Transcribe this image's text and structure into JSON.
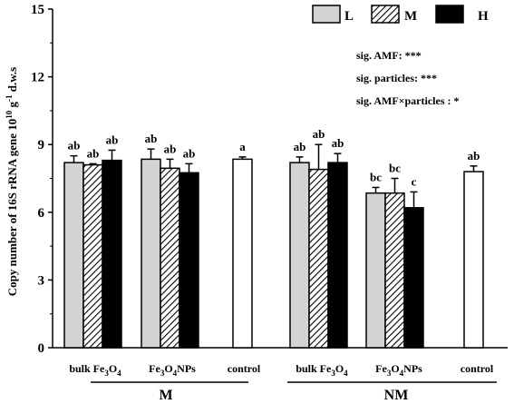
{
  "chart_data": {
    "type": "bar",
    "ylabel_parts": [
      "Copy number of 16S rRNA gene 10",
      "10",
      " g",
      "-1",
      " d.w.s"
    ],
    "ylim": [
      0,
      15
    ],
    "yticks": [
      0,
      3,
      6,
      9,
      12,
      15
    ],
    "legend": {
      "placement": "top-right",
      "entries": [
        {
          "label": "L",
          "pattern": "solid",
          "color": "#d3d3d3"
        },
        {
          "label": "M",
          "pattern": "hatch",
          "color": "#ffffff"
        },
        {
          "label": "H",
          "pattern": "solid",
          "color": "#000000"
        }
      ]
    },
    "annotations": [
      "sig. AMF: ***",
      "sig. particles: ***",
      "sig. AMF×particles : *"
    ],
    "groups": [
      {
        "label": "M",
        "categories": [
          {
            "parts": [
              "bulk Fe",
              "3",
              "O",
              "4"
            ],
            "bars": [
              {
                "level": "L",
                "value": 8.2,
                "err": 0.3,
                "sig": "ab"
              },
              {
                "level": "M",
                "value": 8.1,
                "err": 0.05,
                "sig": "ab"
              },
              {
                "level": "H",
                "value": 8.3,
                "err": 0.45,
                "sig": "ab"
              }
            ]
          },
          {
            "parts": [
              "Fe",
              "3",
              "O",
              "4",
              "NPs"
            ],
            "bars": [
              {
                "level": "L",
                "value": 8.35,
                "err": 0.45,
                "sig": "ab"
              },
              {
                "level": "M",
                "value": 7.95,
                "err": 0.4,
                "sig": "ab"
              },
              {
                "level": "H",
                "value": 7.75,
                "err": 0.4,
                "sig": "ab"
              }
            ]
          },
          {
            "parts": [
              "control"
            ],
            "bars": [
              {
                "level": "control",
                "value": 8.35,
                "err": 0.1,
                "sig": "a"
              }
            ]
          }
        ]
      },
      {
        "label": "NM",
        "categories": [
          {
            "parts": [
              "bulk Fe",
              "3",
              "O",
              "4"
            ],
            "bars": [
              {
                "level": "L",
                "value": 8.2,
                "err": 0.25,
                "sig": "ab"
              },
              {
                "level": "M",
                "value": 7.9,
                "err": 1.1,
                "sig": "ab"
              },
              {
                "level": "H",
                "value": 8.2,
                "err": 0.4,
                "sig": "ab"
              }
            ]
          },
          {
            "parts": [
              "Fe",
              "3",
              "O",
              "4",
              "NPs"
            ],
            "bars": [
              {
                "level": "L",
                "value": 6.85,
                "err": 0.25,
                "sig": "bc"
              },
              {
                "level": "M",
                "value": 6.85,
                "err": 0.65,
                "sig": "bc"
              },
              {
                "level": "H",
                "value": 6.2,
                "err": 0.7,
                "sig": "c"
              }
            ]
          },
          {
            "parts": [
              "control"
            ],
            "bars": [
              {
                "level": "control",
                "value": 7.8,
                "err": 0.25,
                "sig": "ab"
              }
            ]
          }
        ]
      }
    ],
    "colors": {
      "L": "#d3d3d3",
      "M_hatch": "#000000",
      "H": "#000000",
      "control": "#ffffff"
    }
  }
}
